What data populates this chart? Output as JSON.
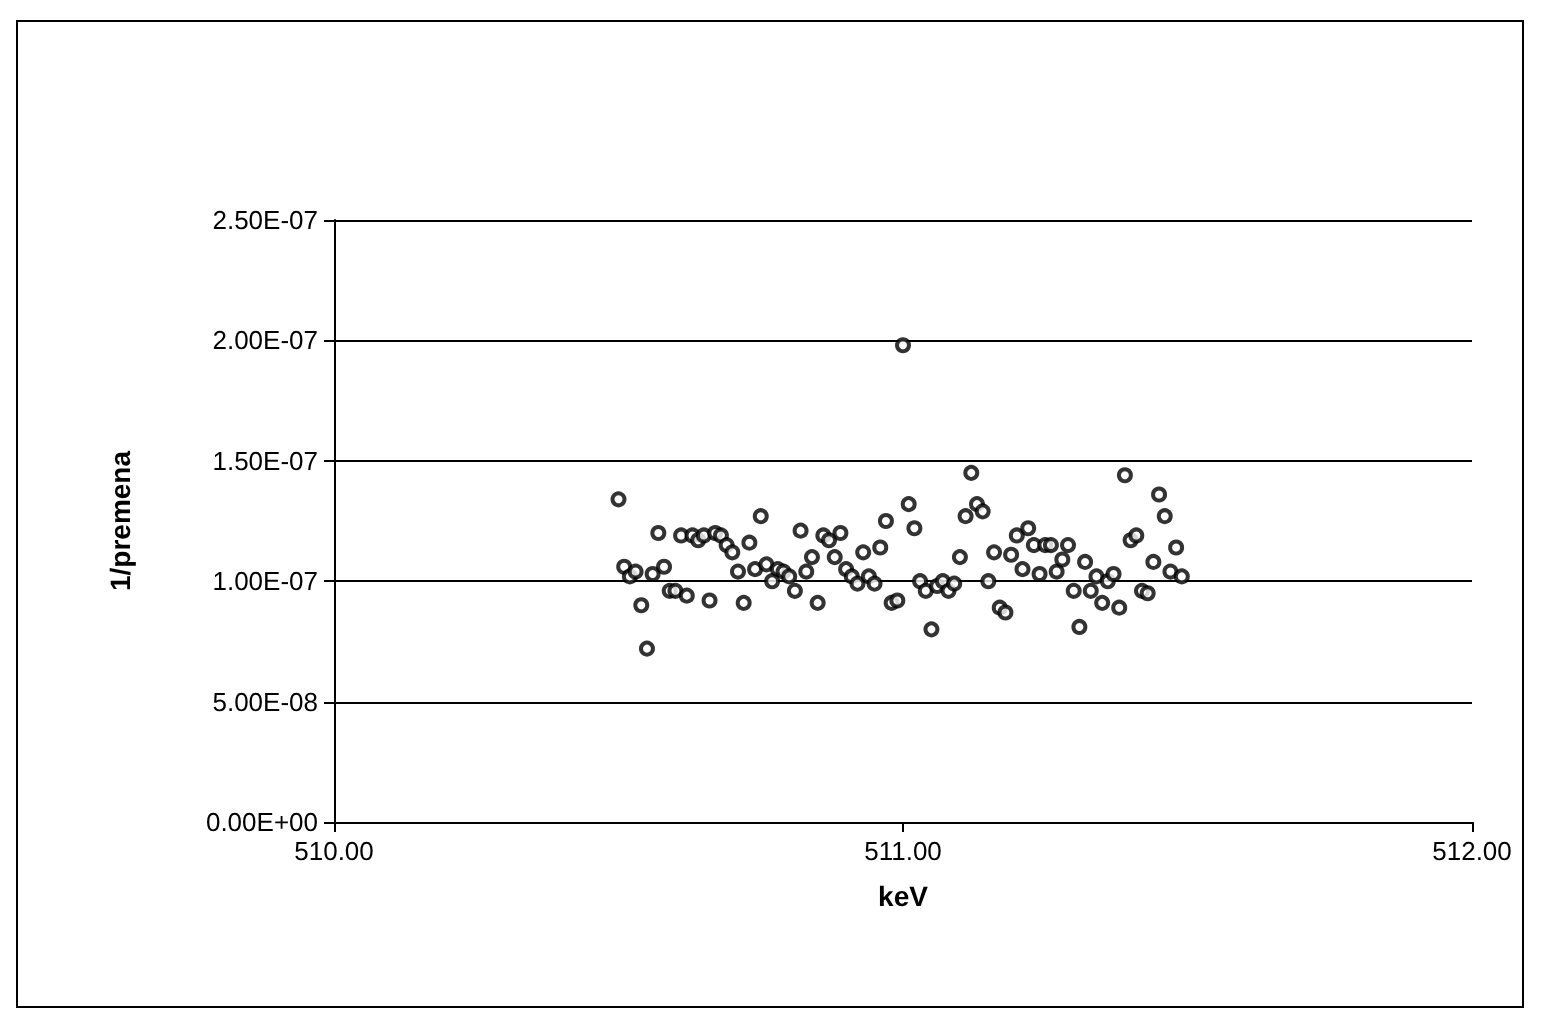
{
  "chart_data": {
    "type": "scatter",
    "xlabel": "keV",
    "ylabel": "1/premena",
    "x": [
      510.5,
      510.51,
      510.52,
      510.53,
      510.54,
      510.55,
      510.56,
      510.57,
      510.58,
      510.59,
      510.6,
      510.61,
      510.62,
      510.63,
      510.64,
      510.65,
      510.66,
      510.67,
      510.68,
      510.69,
      510.7,
      510.71,
      510.72,
      510.73,
      510.74,
      510.75,
      510.76,
      510.77,
      510.78,
      510.79,
      510.8,
      510.81,
      510.82,
      510.83,
      510.84,
      510.85,
      510.86,
      510.87,
      510.88,
      510.89,
      510.9,
      510.91,
      510.92,
      510.93,
      510.94,
      510.95,
      510.96,
      510.97,
      510.98,
      510.99,
      511.0,
      511.01,
      511.02,
      511.03,
      511.04,
      511.05,
      511.06,
      511.07,
      511.08,
      511.09,
      511.1,
      511.11,
      511.12,
      511.13,
      511.14,
      511.15,
      511.16,
      511.17,
      511.18,
      511.19,
      511.2,
      511.21,
      511.22,
      511.23,
      511.24,
      511.25,
      511.26,
      511.27,
      511.28,
      511.29,
      511.3,
      511.31,
      511.32,
      511.33,
      511.34,
      511.35,
      511.36,
      511.37,
      511.38,
      511.39,
      511.4,
      511.41,
      511.42,
      511.43,
      511.44,
      511.45,
      511.46,
      511.47,
      511.48,
      511.49
    ],
    "series": [
      {
        "color": "#000000",
        "values": [
          1.34e-07,
          1.06e-07,
          1.02e-07,
          1.04e-07,
          9e-08,
          7.2e-08,
          1.03e-07,
          1.2e-07,
          1.06e-07,
          9.6e-08,
          9.6e-08,
          1.19e-07,
          9.4e-08,
          1.19e-07,
          1.17e-07,
          1.19e-07,
          9.2e-08,
          1.2e-07,
          1.19e-07,
          1.15e-07,
          1.12e-07,
          1.04e-07,
          9.1e-08,
          1.16e-07,
          1.05e-07,
          1.27e-07,
          1.07e-07,
          1e-07,
          1.05e-07,
          1.04e-07,
          1.02e-07,
          9.6e-08,
          1.21e-07,
          1.04e-07,
          1.1e-07,
          9.1e-08,
          1.19e-07,
          1.17e-07,
          1.1e-07,
          1.2e-07,
          1.05e-07,
          1.02e-07,
          9.9e-08,
          1.12e-07,
          1.02e-07,
          9.9e-08,
          1.14e-07,
          1.25e-07,
          9.1e-08,
          9.2e-08,
          1.98e-07,
          1.32e-07,
          1.22e-07,
          1e-07,
          9.6e-08,
          8e-08,
          9.8e-08,
          1e-07,
          9.6e-08,
          9.9e-08,
          1.1e-07,
          1.27e-07,
          1.45e-07,
          1.32e-07,
          1.29e-07,
          1e-07,
          1.12e-07,
          8.9e-08,
          8.7e-08,
          1.11e-07,
          1.19e-07,
          1.05e-07,
          1.22e-07,
          1.15e-07,
          1.03e-07,
          1.15e-07,
          1.15e-07,
          1.04e-07,
          1.09e-07,
          1.15e-07,
          9.6e-08,
          8.1e-08,
          1.08e-07,
          9.6e-08,
          1.02e-07,
          9.1e-08,
          1e-07,
          1.03e-07,
          8.9e-08,
          1.44e-07,
          1.17e-07,
          1.19e-07,
          9.6e-08,
          9.5e-08,
          1.08e-07,
          1.36e-07,
          1.27e-07,
          1.04e-07,
          1.14e-07,
          1.02e-07
        ]
      }
    ],
    "xlim": [
      510,
      512
    ],
    "xticks": [
      {
        "value": 510,
        "label": "510.00"
      },
      {
        "value": 511,
        "label": "511.00"
      },
      {
        "value": 512,
        "label": "512.00"
      }
    ],
    "ylim": [
      0,
      2.5e-07
    ],
    "yticks": [
      {
        "value": 0,
        "label": "0.00E+00"
      },
      {
        "value": 5e-08,
        "label": "5.00E-08"
      },
      {
        "value": 1e-07,
        "label": "1.00E-07"
      },
      {
        "value": 1.5e-07,
        "label": "1.50E-07"
      },
      {
        "value": 2e-07,
        "label": "2.00E-07"
      },
      {
        "value": 2.5e-07,
        "label": "2.50E-07"
      }
    ],
    "grid": "y",
    "marker": "circle"
  }
}
